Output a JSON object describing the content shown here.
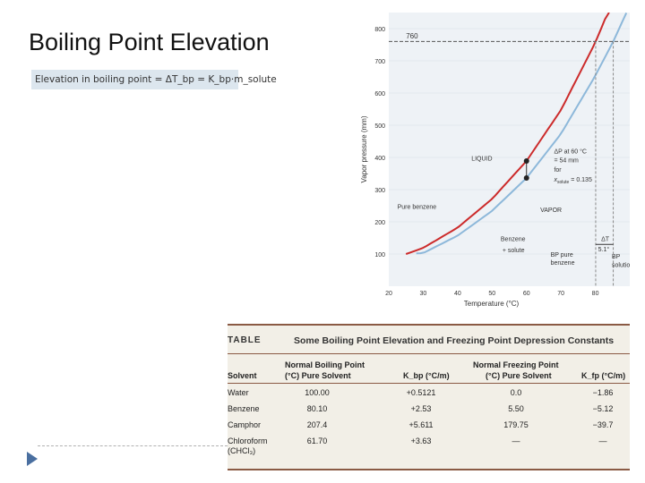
{
  "slide": {
    "title": "Boiling Point Elevation",
    "formula": "Elevation in boiling point = ΔT_bp = K_bp·m_solute"
  },
  "chart_data": {
    "type": "line",
    "xlabel": "Temperature (°C)",
    "ylabel": "Vapor pressure (mm)",
    "xlim": [
      20,
      90
    ],
    "ylim": [
      0,
      850
    ],
    "xticks": [
      20,
      30,
      40,
      50,
      60,
      70,
      80
    ],
    "yticks": [
      100,
      200,
      300,
      400,
      500,
      600,
      700,
      800
    ],
    "series": [
      {
        "name": "Pure benzene",
        "color": "#cc2b2b",
        "x": [
          25,
          30,
          40,
          50,
          60,
          70,
          80,
          84
        ],
        "y": [
          100,
          119,
          182,
          271,
          389,
          547,
          757,
          860
        ]
      },
      {
        "name": "Benzene + solute",
        "color": "#8db8da",
        "x": [
          28,
          30,
          40,
          50,
          60,
          70,
          80,
          85.2,
          89
        ],
        "y": [
          102,
          103,
          157,
          234,
          336,
          473,
          654,
          760,
          849
        ]
      }
    ],
    "annotations": {
      "ref760": "760",
      "liquid": "LIQUID",
      "vapor": "VAPOR",
      "pure_benzene": "Pure benzene",
      "benzene_solute_1": "Benzene",
      "benzene_solute_2": "+ solute",
      "dp_1": "ΔP at 60 °C",
      "dp_2": "= 54 mm",
      "dp_3": "for",
      "dp_4": "x",
      "dp_4_sub": "solute",
      "dp_4_val": "= 0.135",
      "dt": "ΔT",
      "dt_val": "5.1°",
      "bp_pure_1": "BP pure",
      "bp_pure_2": "benzene",
      "bp_sol_1": "BP",
      "bp_sol_2": "solution"
    }
  },
  "table": {
    "tag": "TABLE",
    "title": "Some Boiling Point Elevation and Freezing Point Depression Constants",
    "headers": {
      "solvent": "Solvent",
      "nbp_1": "Normal Boiling Point",
      "nbp_2": "(°C) Pure Solvent",
      "kbp": "K_bp (°C/m)",
      "nfp_1": "Normal Freezing Point",
      "nfp_2": "(°C) Pure Solvent",
      "kfp": "K_fp (°C/m)"
    },
    "rows": [
      {
        "solvent": "Water",
        "bp": "100.00",
        "kbp": "+0.5121",
        "fp": "0.0",
        "kfp": "−1.86"
      },
      {
        "solvent": "Benzene",
        "bp": "80.10",
        "kbp": "+2.53",
        "fp": "5.50",
        "kfp": "−5.12"
      },
      {
        "solvent": "Camphor",
        "bp": "207.4",
        "kbp": "+5.611",
        "fp": "179.75",
        "kfp": "−39.7"
      },
      {
        "solvent": "Chloroform",
        "solvent2": "(CHCl₃)",
        "bp": "61.70",
        "kbp": "+3.63",
        "fp": "—",
        "kfp": "—"
      }
    ]
  }
}
